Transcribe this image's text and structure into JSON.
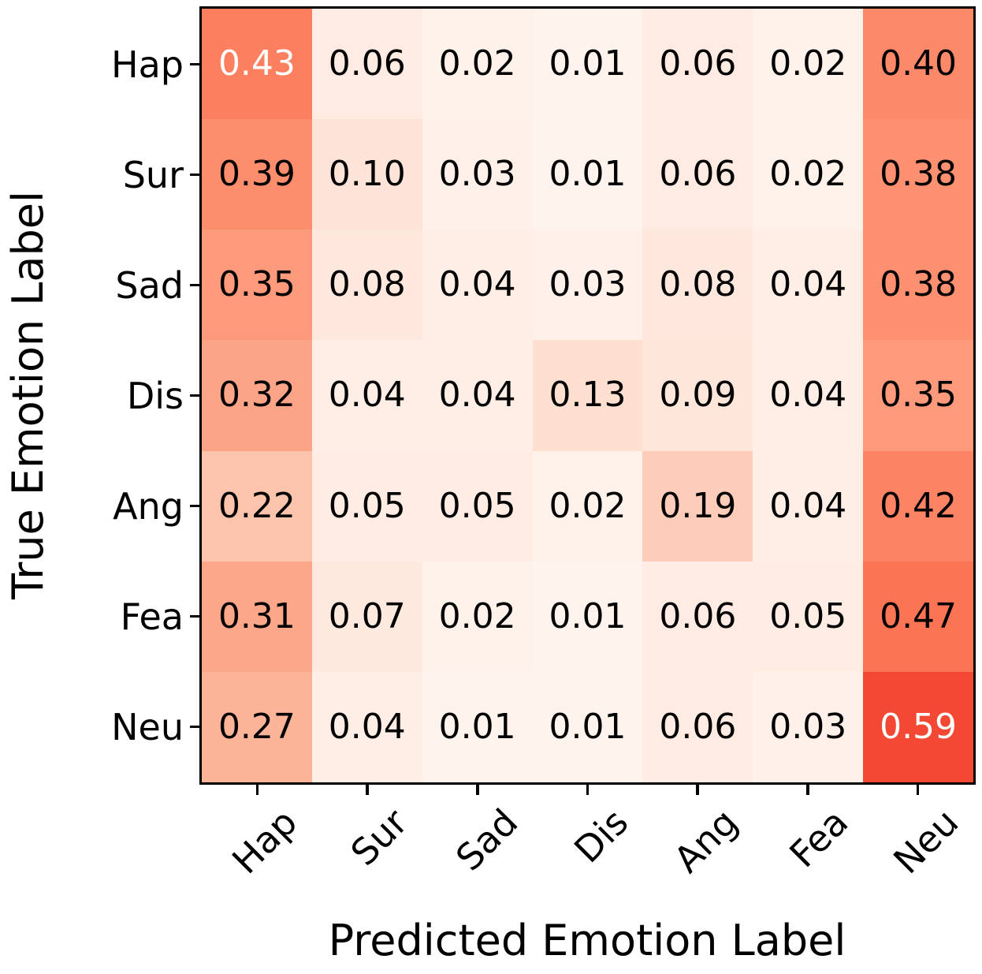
{
  "chart_data": {
    "type": "heatmap",
    "title": "",
    "xlabel": "Predicted Emotion Label",
    "ylabel": "True Emotion Label",
    "x_categories": [
      "Hap",
      "Sur",
      "Sad",
      "Dis",
      "Ang",
      "Fea",
      "Neu"
    ],
    "y_categories": [
      "Hap",
      "Sur",
      "Sad",
      "Dis",
      "Ang",
      "Fea",
      "Neu"
    ],
    "values": [
      [
        0.43,
        0.06,
        0.02,
        0.01,
        0.06,
        0.02,
        0.4
      ],
      [
        0.39,
        0.1,
        0.03,
        0.01,
        0.06,
        0.02,
        0.38
      ],
      [
        0.35,
        0.08,
        0.04,
        0.03,
        0.08,
        0.04,
        0.38
      ],
      [
        0.32,
        0.04,
        0.04,
        0.13,
        0.09,
        0.04,
        0.35
      ],
      [
        0.22,
        0.05,
        0.05,
        0.02,
        0.19,
        0.04,
        0.42
      ],
      [
        0.31,
        0.07,
        0.02,
        0.01,
        0.06,
        0.05,
        0.47
      ],
      [
        0.27,
        0.04,
        0.01,
        0.01,
        0.06,
        0.03,
        0.59
      ]
    ],
    "value_decimals": 2,
    "colormap": {
      "name": "Reds",
      "vmin": 0,
      "vmax": 1,
      "anchors": [
        "#fff5f0",
        "#fee0d2",
        "#fcbba1",
        "#fc9272",
        "#fb6a4a",
        "#ef3b2c",
        "#cb181d",
        "#a50f15",
        "#67000d"
      ]
    },
    "annotation_colors": {
      "dark": "#000000",
      "light": "#ffffff"
    },
    "white_text_cells": [
      [
        0,
        0
      ],
      [
        6,
        6
      ]
    ],
    "axis_color": "#000000",
    "grid": false,
    "legend_position": "none"
  }
}
